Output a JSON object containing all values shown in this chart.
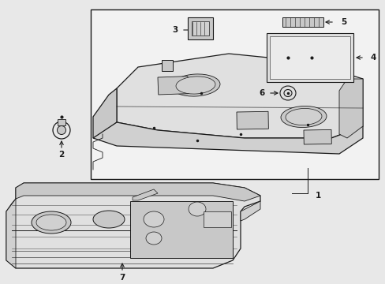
{
  "bg_color": "#e8e8e8",
  "box_bg": "#f2f2f2",
  "line_color": "#1a1a1a",
  "part_fill": "#e0e0e0",
  "part_fill2": "#c8c8c8",
  "part_fill3": "#d0d0d0",
  "white": "#ffffff"
}
